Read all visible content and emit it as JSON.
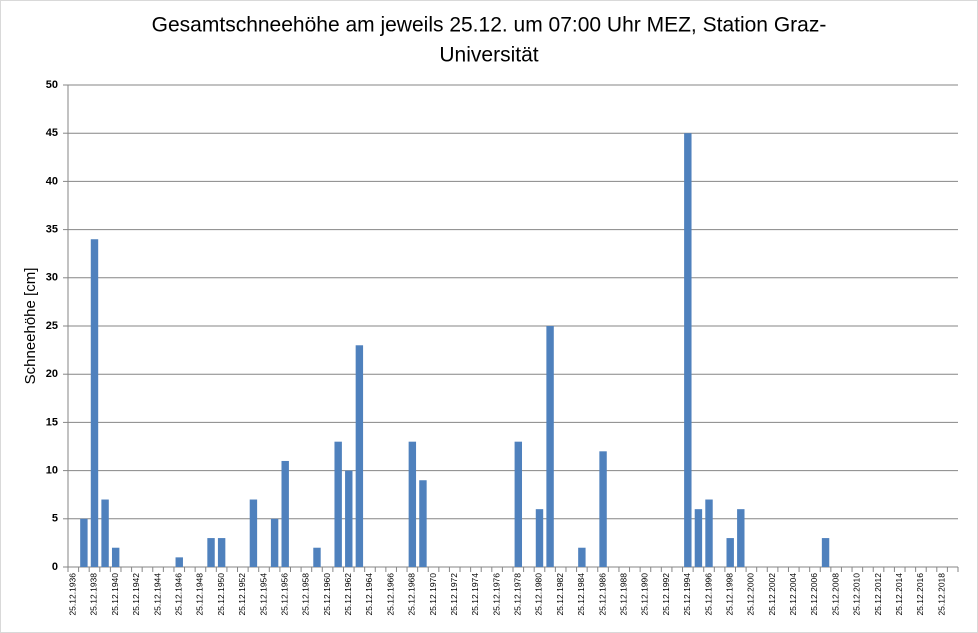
{
  "chart_data": {
    "type": "bar",
    "title": [
      "Gesamtschneehöhe am jeweils 25.12. um 07:00 Uhr MEZ, Station Graz-",
      "Universität"
    ],
    "y_label": "Schneehöhe [cm]",
    "color": "#4f81bd",
    "grid": true,
    "ylim": [
      0,
      50
    ],
    "yticks": [
      0,
      5,
      10,
      15,
      20,
      25,
      30,
      35,
      40,
      45,
      50
    ],
    "categories": [
      "25.12.1936",
      null,
      "25.12.1938",
      null,
      "25.12.1940",
      null,
      "25.12.1942",
      null,
      "25.12.1944",
      null,
      "25.12.1946",
      null,
      "25.12.1948",
      null,
      "25.12.1950",
      null,
      "25.12.1952",
      null,
      "25.12.1954",
      null,
      "25.12.1956",
      null,
      "25.12.1958",
      null,
      "25.12.1960",
      null,
      "25.12.1962",
      null,
      "25.12.1964",
      null,
      "25.12.1966",
      null,
      "25.12.1968",
      null,
      "25.12.1970",
      null,
      "25.12.1972",
      null,
      "25.12.1974",
      null,
      "25.12.1976",
      null,
      "25.12.1978",
      null,
      "25.12.1980",
      null,
      "25.12.1982",
      null,
      "25.12.1984",
      null,
      "25.12.1986",
      null,
      "25.12.1988",
      null,
      "25.12.1990",
      null,
      "25.12.1992",
      null,
      "25.12.1994",
      null,
      "25.12.1996",
      null,
      "25.12.1998",
      null,
      "25.12.2000",
      null,
      "25.12.2002",
      null,
      "25.12.2004",
      null,
      "25.12.2006",
      null,
      "25.12.2008",
      null,
      "25.12.2010",
      null,
      "25.12.2012",
      null,
      "25.12.2014",
      null,
      "25.12.2016",
      null,
      "25.12.2018",
      null
    ],
    "values": [
      0,
      5,
      34,
      7,
      2,
      0,
      0,
      0,
      0,
      0,
      1,
      0,
      0,
      3,
      3,
      0,
      0,
      7,
      0,
      5,
      11,
      0,
      0,
      2,
      0,
      13,
      10,
      23,
      0,
      0,
      0,
      0,
      13,
      9,
      0,
      0,
      0,
      0,
      0,
      0,
      0,
      0,
      13,
      0,
      6,
      25,
      0,
      0,
      2,
      0,
      12,
      0,
      0,
      0,
      0,
      0,
      0,
      0,
      45,
      6,
      7,
      0,
      3,
      6,
      0,
      0,
      0,
      0,
      0,
      0,
      0,
      3,
      0,
      0,
      0,
      0,
      0,
      0,
      0,
      0,
      0,
      0,
      0,
      0
    ]
  }
}
